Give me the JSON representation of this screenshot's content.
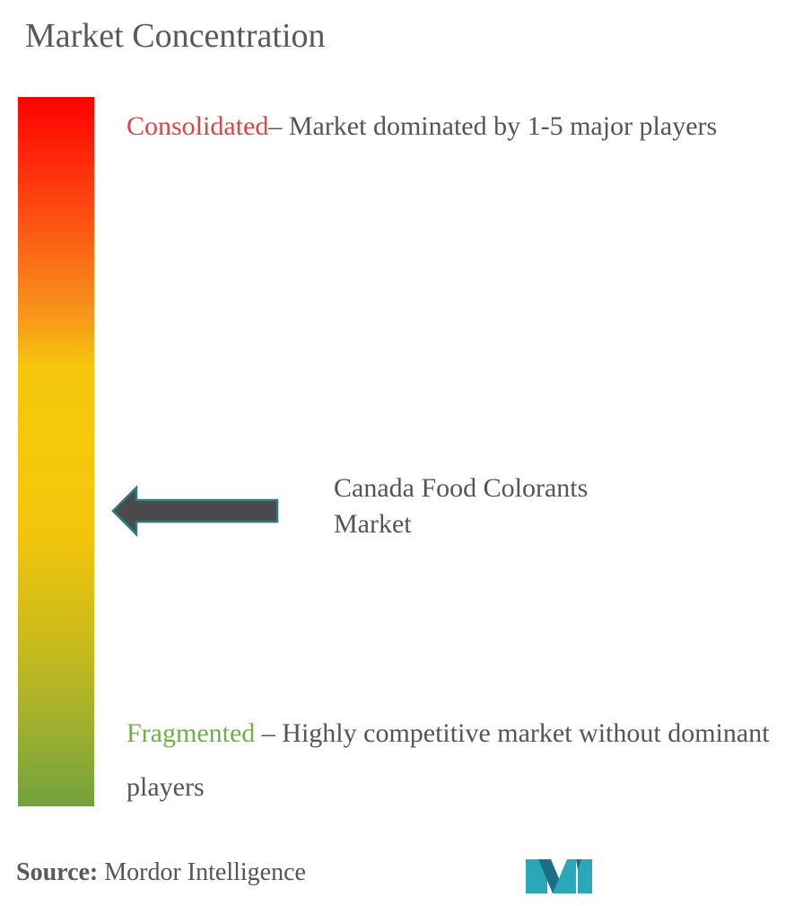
{
  "title": "Market Concentration",
  "scale": {
    "top": {
      "label": "Consolidated",
      "description": "– Market dominated by 1-5 major players"
    },
    "bottom": {
      "label": "Fragmented",
      "description": " – Highly competitive market without dominant players"
    }
  },
  "marker": {
    "label": "Canada Food Colorants Market",
    "position_fraction_from_top": 0.58
  },
  "source": {
    "label": "Source:",
    "value": " Mordor Intelligence"
  },
  "colors": {
    "consolidated": "#d9474a",
    "fragmented": "#6fb04a",
    "arrow_fill": "#4a4a4a",
    "arrow_outline": "#2e7d7d",
    "logo_teal": "#2aa8b8",
    "logo_dark": "#1d6f86"
  },
  "icons": {
    "arrow": "left-arrow-icon",
    "logo": "mordor-intelligence-logo-icon"
  }
}
